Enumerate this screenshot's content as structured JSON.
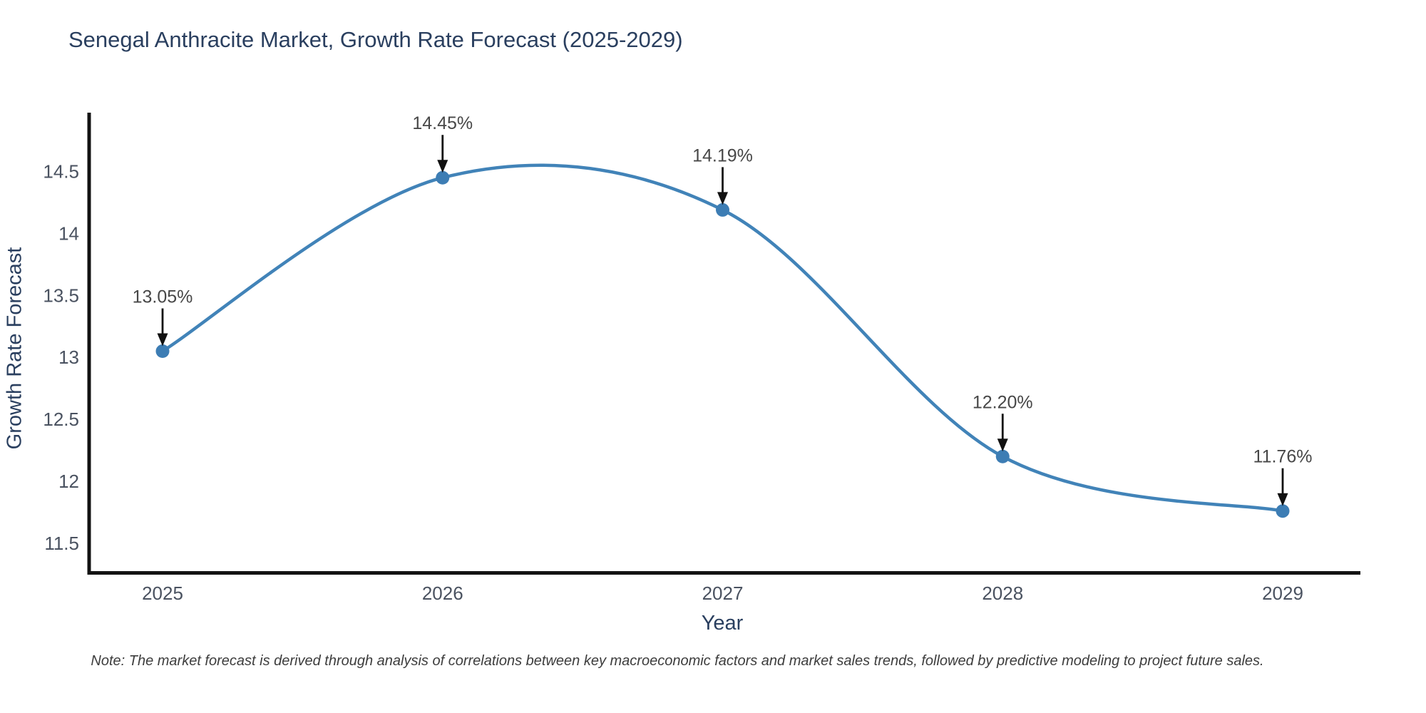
{
  "title": "Senegal Anthracite Market, Growth Rate Forecast (2025-2029)",
  "note": "Note: The market forecast is derived through analysis of correlations between key macroeconomic factors and market sales trends, followed by predictive modeling to project future sales.",
  "colors": {
    "background": "#ffffff",
    "line": "#4183b8",
    "marker": "#3d7db4",
    "axis_line": "#131313",
    "title_text": "#2a3f5f",
    "axis_title_text": "#2a3f5f",
    "tick_text": "#4a5260",
    "annotation_text": "#474747",
    "annotation_arrow": "#111111",
    "note_text": "#3d3d3d"
  },
  "chart_data": {
    "type": "line",
    "title": "Senegal Anthracite Market, Growth Rate Forecast (2025-2029)",
    "xlabel": "Year",
    "ylabel": "Growth Rate Forecast",
    "x": [
      2025,
      2026,
      2027,
      2028,
      2029
    ],
    "series": [
      {
        "name": "Growth Rate Forecast",
        "values": [
          13.05,
          14.45,
          14.19,
          12.2,
          11.76
        ]
      }
    ],
    "point_labels": [
      "13.05%",
      "14.45%",
      "14.19%",
      "12.20%",
      "11.76%"
    ],
    "xticks": [
      "2025",
      "2026",
      "2027",
      "2028",
      "2029"
    ],
    "yticks": [
      "11.5",
      "12",
      "12.5",
      "13",
      "13.5",
      "14",
      "14.5"
    ],
    "ylim": [
      11.275,
      14.975
    ],
    "line_shape": "spline",
    "grid": false,
    "legend_position": "none",
    "annotations": "value labels with downward arrows at each data point"
  }
}
